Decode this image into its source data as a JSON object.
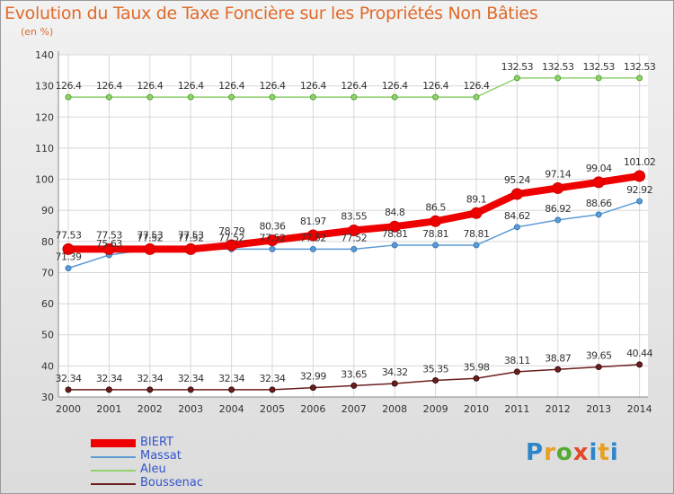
{
  "title": "Evolution du Taux de Taxe Foncière sur les Propriétés Non Bâties",
  "unit": "(en %)",
  "logo": "Proxiti",
  "chart_data": {
    "type": "line",
    "x": [
      "2000",
      "2001",
      "2002",
      "2003",
      "2004",
      "2005",
      "2006",
      "2007",
      "2008",
      "2009",
      "2010",
      "2011",
      "2012",
      "2013",
      "2014"
    ],
    "ylim": [
      30,
      140
    ],
    "yticks": [
      30,
      40,
      50,
      60,
      70,
      80,
      90,
      100,
      110,
      120,
      130,
      140
    ],
    "grid": true,
    "legend_position": "bottom-left",
    "series": [
      {
        "name": "BIERT",
        "color": "#ee0000",
        "width": 8,
        "values": [
          77.53,
          77.53,
          77.53,
          77.53,
          78.79,
          80.36,
          81.97,
          83.55,
          84.8,
          86.5,
          89.1,
          95.24,
          97.14,
          99.04,
          101.02
        ],
        "labels": [
          "77.53",
          "77.53",
          "77.53",
          "77.53",
          "78.79",
          "80.36",
          "81.97",
          "83.55",
          "84.8",
          "86.5",
          "89.1",
          "95.24",
          "97.14",
          "99.04",
          "101.02"
        ]
      },
      {
        "name": "Massat",
        "color": "#5b9bd5",
        "width": 1.5,
        "values": [
          71.39,
          75.63,
          77.52,
          77.52,
          77.52,
          77.52,
          77.52,
          77.52,
          78.81,
          78.81,
          78.81,
          84.62,
          86.92,
          88.66,
          92.92
        ],
        "labels": [
          "71.39",
          "75.63",
          "77.52",
          "77.52",
          "77.52",
          "77.52",
          "77.52",
          "77.52",
          "78.81",
          "78.81",
          "78.81",
          "84.62",
          "86.92",
          "88.66",
          "92.92"
        ]
      },
      {
        "name": "Aleu",
        "color": "#8fd16a",
        "width": 1.5,
        "values": [
          126.4,
          126.4,
          126.4,
          126.4,
          126.4,
          126.4,
          126.4,
          126.4,
          126.4,
          126.4,
          126.4,
          132.53,
          132.53,
          132.53,
          132.53
        ],
        "labels": [
          "126.4",
          "126.4",
          "126.4",
          "126.4",
          "126.4",
          "126.4",
          "126.4",
          "126.4",
          "126.4",
          "126.4",
          "126.4",
          "132.53",
          "132.53",
          "132.53",
          "132.53"
        ]
      },
      {
        "name": "Boussenac",
        "color": "#6b1e1e",
        "width": 1.5,
        "values": [
          32.34,
          32.34,
          32.34,
          32.34,
          32.34,
          32.34,
          32.99,
          33.65,
          34.32,
          35.35,
          35.98,
          38.11,
          38.87,
          39.65,
          40.44
        ],
        "labels": [
          "32.34",
          "32.34",
          "32.34",
          "32.34",
          "32.34",
          "32.34",
          "32.99",
          "33.65",
          "34.32",
          "35.35",
          "35.98",
          "38.11",
          "38.87",
          "39.65",
          "40.44"
        ]
      }
    ]
  }
}
